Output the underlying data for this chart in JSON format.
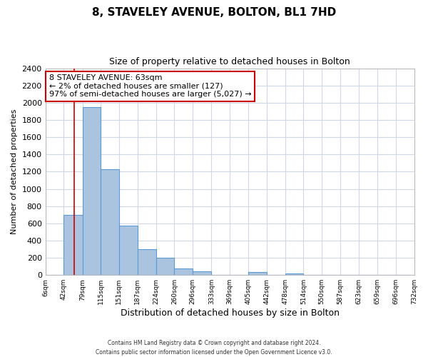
{
  "title": "8, STAVELEY AVENUE, BOLTON, BL1 7HD",
  "subtitle": "Size of property relative to detached houses in Bolton",
  "xlabel": "Distribution of detached houses by size in Bolton",
  "ylabel": "Number of detached properties",
  "bin_edges": [
    6,
    42,
    79,
    115,
    151,
    187,
    224,
    260,
    296,
    333,
    369,
    405,
    442,
    478,
    514,
    550,
    587,
    623,
    659,
    696,
    732
  ],
  "bin_labels": [
    "6sqm",
    "42sqm",
    "79sqm",
    "115sqm",
    "151sqm",
    "187sqm",
    "224sqm",
    "260sqm",
    "296sqm",
    "333sqm",
    "369sqm",
    "405sqm",
    "442sqm",
    "478sqm",
    "514sqm",
    "550sqm",
    "587sqm",
    "623sqm",
    "659sqm",
    "696sqm",
    "732sqm"
  ],
  "bar_heights": [
    0,
    700,
    1950,
    1230,
    570,
    300,
    200,
    80,
    45,
    0,
    0,
    35,
    0,
    15,
    0,
    0,
    0,
    0,
    0,
    0
  ],
  "bar_color": "#aac4e0",
  "bar_edge_color": "#5b9bd5",
  "ylim": [
    0,
    2400
  ],
  "yticks": [
    0,
    200,
    400,
    600,
    800,
    1000,
    1200,
    1400,
    1600,
    1800,
    2000,
    2200,
    2400
  ],
  "vline_x": 63,
  "vline_color": "#cc0000",
  "annotation_line1": "8 STAVELEY AVENUE: 63sqm",
  "annotation_line2": "← 2% of detached houses are smaller (127)",
  "annotation_line3": "97% of semi-detached houses are larger (5,027) →",
  "annotation_box_color": "#cc0000",
  "footer_line1": "Contains HM Land Registry data © Crown copyright and database right 2024.",
  "footer_line2": "Contains public sector information licensed under the Open Government Licence v3.0.",
  "background_color": "#ffffff",
  "grid_color": "#d0d8e8"
}
